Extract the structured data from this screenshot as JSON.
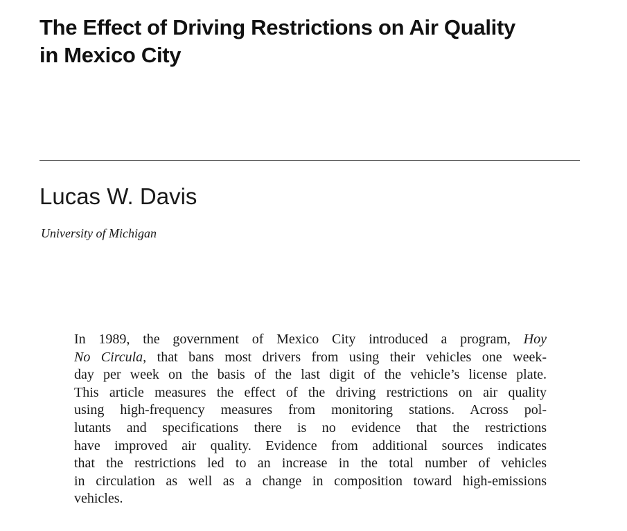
{
  "paper": {
    "title_lines": [
      "The Effect of Driving Restrictions on Air Quality",
      "in Mexico City"
    ],
    "author": "Lucas W. Davis",
    "affiliation": "University of Michigan",
    "abstract": {
      "lines": [
        {
          "segments": [
            {
              "text": "In 1989, the government of Mexico City introduced a program, ",
              "italic": false
            },
            {
              "text": "Hoy",
              "italic": true
            }
          ]
        },
        {
          "segments": [
            {
              "text": "No Circula,",
              "italic": true
            },
            {
              "text": " that bans most drivers from using their vehicles one week-",
              "italic": false
            }
          ]
        },
        {
          "segments": [
            {
              "text": "day per week on the basis of the last digit of the vehicle’s license plate.",
              "italic": false
            }
          ]
        },
        {
          "segments": [
            {
              "text": "This article measures the effect of the driving restrictions on air quality",
              "italic": false
            }
          ]
        },
        {
          "segments": [
            {
              "text": "using high-frequency measures from monitoring stations. Across pol-",
              "italic": false
            }
          ]
        },
        {
          "segments": [
            {
              "text": "lutants and specifications there is no evidence that the restrictions",
              "italic": false
            }
          ]
        },
        {
          "segments": [
            {
              "text": "have improved air quality. Evidence from additional sources indicates",
              "italic": false
            }
          ]
        },
        {
          "segments": [
            {
              "text": "that the restrictions led to an increase in the total number of vehicles",
              "italic": false
            }
          ]
        },
        {
          "segments": [
            {
              "text": "in circulation as well as a change in composition toward high-emissions",
              "italic": false
            }
          ]
        },
        {
          "segments": [
            {
              "text": "vehicles.",
              "italic": false
            }
          ]
        }
      ]
    }
  }
}
